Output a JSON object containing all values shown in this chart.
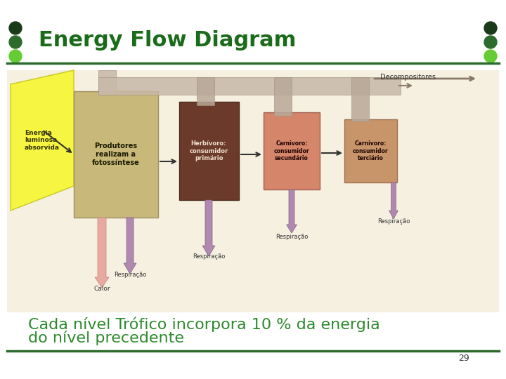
{
  "title": "Energy Flow Diagram",
  "title_color": "#1a6b1a",
  "title_fontsize": 22,
  "title_bold": true,
  "caption_line1": "Cada nível Trófico incorpora 10 % da energia",
  "caption_line2": "do nível precedente",
  "caption_color": "#2d8a2d",
  "caption_fontsize": 16,
  "bg_color": "#ffffff",
  "header_line_color": "#2d6b2d",
  "footer_line_color": "#2d6b2d",
  "dot_colors": [
    "#1a3a1a",
    "#2d6b2d",
    "#66cc33"
  ],
  "page_number": "29",
  "diagram_bg": "#f5f0e0",
  "yellow_color": "#f5f542",
  "tan_color": "#c8b87a",
  "dark_brown_color": "#6b3a2a",
  "salmon_color": "#d4856a",
  "orange_tan_color": "#c8956a",
  "pink_color": "#e8aaa0",
  "purple_color": "#b088b0",
  "decomp_color": "#c8b8a8",
  "label_energia": "Energia\nluminosa\nabsorvida",
  "label_produtores": "Produtores\nrealizam a\nfotossíntese",
  "label_herbivoro": "Herbívoro:\nconsumidor\nprimário",
  "label_carnivoro2": "Carnivoro:\nconsumidor\nsecundário",
  "label_carnivoro3": "Carnivoro:\nconsumidor\nterciário",
  "label_decompositores": "Decompositores",
  "label_calor": "Calor",
  "label_respiracao": "Respiração",
  "green_dark": "#1a5c1a",
  "green_mid": "#2d8a2d",
  "green_light": "#66cc33"
}
